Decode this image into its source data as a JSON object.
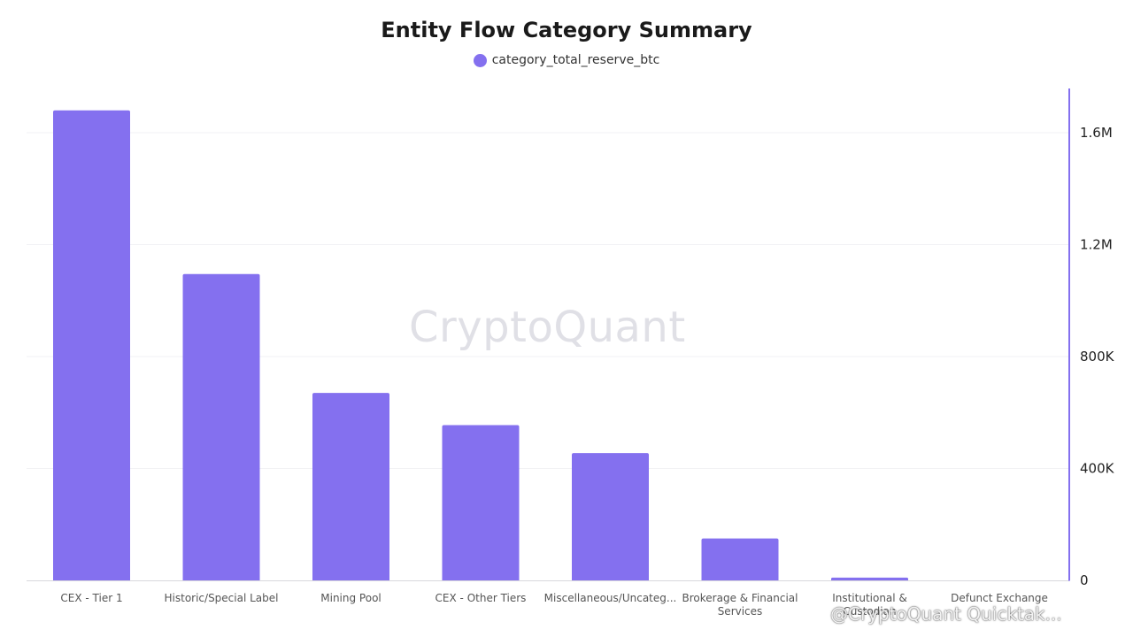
{
  "chart_data": {
    "type": "bar",
    "title": "Entity Flow Category Summary",
    "categories": [
      "CEX - Tier 1",
      "Historic/Special Label",
      "Mining Pool",
      "CEX - Other Tiers",
      "Miscellaneous/Uncateg...",
      "Brokerage & Financial Services",
      "Institutional & Custodian",
      "Defunct Exchange"
    ],
    "series": [
      {
        "name": "category_total_reserve_btc",
        "values": [
          1680000,
          1095000,
          670000,
          555000,
          455000,
          150000,
          10000,
          0
        ],
        "color": "#8470ef"
      }
    ],
    "y_ticks": [
      "0",
      "400K",
      "800K",
      "1.2M",
      "1.6M"
    ],
    "ylim": [
      0,
      1760000
    ],
    "y_axis_side": "right",
    "legend_position": "top-center",
    "grid": true
  },
  "watermark": "CryptoQuant",
  "footer_credit": "@CryptoQuant Quicktak..."
}
